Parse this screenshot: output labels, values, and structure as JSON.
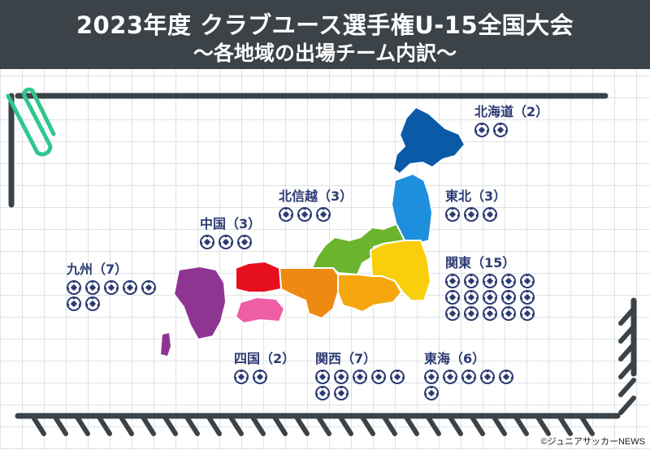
{
  "header": {
    "title": "2023年度 クラブユース選手権U-15全国大会",
    "subtitle": "～各地域の出場チーム内訳～"
  },
  "regions": [
    {
      "id": "hokkaido",
      "label": "北海道（2）",
      "count": 2,
      "color": "#0a5aa8"
    },
    {
      "id": "tohoku",
      "label": "東北（3）",
      "count": 3,
      "color": "#1e8fdc"
    },
    {
      "id": "hokushinetsu",
      "label": "北信越（3）",
      "count": 3,
      "color": "#6ab42e"
    },
    {
      "id": "kanto",
      "label": "関東（15）",
      "count": 15,
      "color": "#f8cf0a"
    },
    {
      "id": "chugoku",
      "label": "中国（3）",
      "count": 3,
      "color": "#e60f1e"
    },
    {
      "id": "kyushu",
      "label": "九州（7）",
      "count": 7,
      "color": "#8e3592"
    },
    {
      "id": "shikoku",
      "label": "四国（2）",
      "count": 2,
      "color": "#ee5ea4"
    },
    {
      "id": "kansai",
      "label": "関西（7）",
      "count": 7,
      "color": "#ee8a12"
    },
    {
      "id": "tokai",
      "label": "東海（6）",
      "count": 6,
      "color": "#f7a70e"
    }
  ],
  "credit": "©ジュニアサッカーNEWS",
  "colors": {
    "header_bg": "#3b4248",
    "text": "#2d3b73",
    "frame": "#3b4248",
    "clip": "#2ec78c"
  }
}
